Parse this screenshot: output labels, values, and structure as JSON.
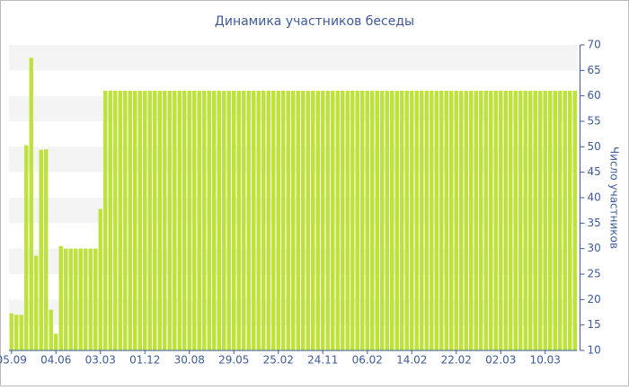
{
  "chart_data": {
    "type": "bar",
    "title": "Динамика участников беседы",
    "y_label": "Число участников",
    "categories": [
      "05.09",
      null,
      null,
      null,
      null,
      null,
      null,
      null,
      null,
      "04.06",
      null,
      null,
      null,
      null,
      null,
      null,
      null,
      null,
      "03.03",
      null,
      null,
      null,
      null,
      null,
      null,
      null,
      null,
      "01.12",
      null,
      null,
      null,
      null,
      null,
      null,
      null,
      null,
      "30.08",
      null,
      null,
      null,
      null,
      null,
      null,
      null,
      null,
      "29.05",
      null,
      null,
      null,
      null,
      null,
      null,
      null,
      null,
      "25.02",
      null,
      null,
      null,
      null,
      null,
      null,
      null,
      null,
      "24.11",
      null,
      null,
      null,
      null,
      null,
      null,
      null,
      null,
      "06.02",
      null,
      null,
      null,
      null,
      null,
      null,
      null,
      null,
      "14.02",
      null,
      null,
      null,
      null,
      null,
      null,
      null,
      null,
      "22.02",
      null,
      null,
      null,
      null,
      null,
      null,
      null,
      null,
      "02.03",
      null,
      null,
      null,
      null,
      null,
      null,
      null,
      null,
      "10.03",
      null,
      null,
      null,
      null,
      null,
      null
    ],
    "values": [
      17.3,
      17,
      17,
      50.3,
      67.5,
      28.6,
      49.4,
      49.5,
      18,
      13.3,
      30.5,
      30,
      30,
      30,
      30,
      30,
      30,
      30,
      37.8,
      61,
      61,
      61,
      61,
      61,
      61,
      61,
      61,
      61,
      61,
      61,
      61,
      61,
      61,
      61,
      61,
      61,
      61,
      61,
      61,
      61,
      61,
      61,
      61,
      61,
      61,
      61,
      61,
      61,
      61,
      61,
      61,
      61,
      61,
      61,
      61,
      61,
      61,
      61,
      61,
      61,
      61,
      61,
      61,
      61,
      61,
      61,
      61,
      61,
      61,
      61,
      61,
      61,
      61,
      61,
      61,
      61,
      61,
      61,
      61,
      61,
      61,
      61,
      61,
      61,
      61,
      61,
      61,
      61,
      61,
      61,
      61,
      61,
      61,
      61,
      61,
      61,
      61,
      61,
      61,
      61,
      61,
      61,
      61,
      61,
      61,
      61,
      61,
      61,
      61,
      61,
      61,
      61,
      61,
      61,
      61
    ],
    "color": "#bde23a",
    "ylim": [
      10,
      70
    ],
    "yticks": [
      10,
      15,
      20,
      25,
      30,
      35,
      40,
      45,
      50,
      55,
      60,
      65,
      70
    ],
    "grid": true,
    "y_axis_side": "right"
  }
}
